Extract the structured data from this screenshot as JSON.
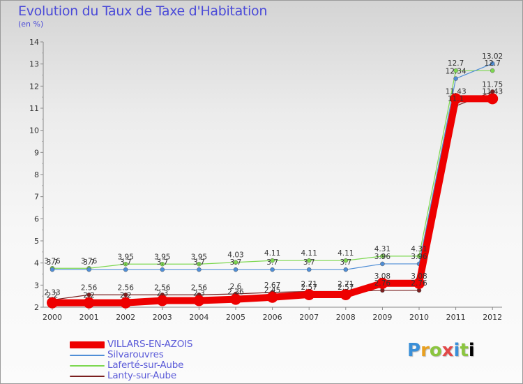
{
  "header": {
    "title": "Evolution du Taux de Taxe d'Habitation",
    "subtitle": "(en %)"
  },
  "chart_data": {
    "type": "line",
    "title": "Evolution du Taux de Taxe d'Habitation",
    "ylabel": "(en %)",
    "xlabel": "",
    "x": [
      "2000",
      "2001",
      "2002",
      "2003",
      "2004",
      "2005",
      "2006",
      "2007",
      "2008",
      "2009",
      "2010",
      "2011",
      "2012"
    ],
    "ylim": [
      2,
      14
    ],
    "yticks": [
      "2",
      "3",
      "4",
      "5",
      "6",
      "7",
      "8",
      "9",
      "10",
      "11",
      "12",
      "13",
      "14"
    ],
    "grid": false,
    "series": [
      {
        "name": "VILLARS-EN-AZOIS",
        "color": "#ee0000",
        "values": [
          2.2,
          2.2,
          2.2,
          2.3,
          2.3,
          2.36,
          2.45,
          2.57,
          2.57,
          3.08,
          3.08,
          11.43,
          11.43
        ],
        "labels": [
          "2.2",
          "2.2",
          "2.2",
          "2.3",
          "2.3",
          "2.36",
          "2.45",
          "2.57",
          "2.57",
          "3.08",
          "3.08",
          "11.43",
          "11.43"
        ]
      },
      {
        "name": "Silvarouvres",
        "color": "#4f8ed6",
        "values": [
          3.7,
          3.7,
          3.7,
          3.7,
          3.7,
          3.7,
          3.7,
          3.7,
          3.7,
          3.96,
          3.96,
          12.34,
          13.02
        ],
        "labels": [
          "3.7",
          "3.7",
          "3.7",
          "3.7",
          "3.7",
          "3.7",
          "3.7",
          "3.7",
          "3.7",
          "3.96",
          "3.96",
          "12.34",
          "13.02"
        ]
      },
      {
        "name": "Laferté-sur-Aube",
        "color": "#7dd850",
        "values": [
          3.76,
          3.76,
          3.95,
          3.95,
          3.95,
          4.03,
          4.11,
          4.11,
          4.11,
          4.31,
          4.31,
          12.7,
          12.7
        ],
        "labels": [
          "3.76",
          "3.76",
          "3.95",
          "3.95",
          "3.95",
          "4.03",
          "4.11",
          "4.11",
          "4.11",
          "4.31",
          "4.31",
          "12.7",
          "12.7"
        ]
      },
      {
        "name": "Lanty-sur-Aube",
        "color": "#7a1f1f",
        "values": [
          2.33,
          2.56,
          2.56,
          2.56,
          2.56,
          2.6,
          2.67,
          2.71,
          2.71,
          2.76,
          2.76,
          11.1,
          11.75
        ],
        "labels": [
          "2.33",
          "2.56",
          "2.56",
          "2.56",
          "2.56",
          "2.6",
          "2.67",
          "2.71",
          "2.71",
          "2.76",
          "2.76",
          "11.1",
          "11.75"
        ]
      }
    ]
  },
  "legend": {
    "items": [
      {
        "label": "VILLARS-EN-AZOIS",
        "color": "#ee0000"
      },
      {
        "label": "Silvarouvres",
        "color": "#4f8ed6"
      },
      {
        "label": "Laferté-sur-Aube",
        "color": "#7dd850"
      },
      {
        "label": "Lanty-sur-Aube",
        "color": "#7a1f1f"
      }
    ]
  },
  "logo": {
    "letters": [
      "P",
      "r",
      "o",
      "x",
      "i",
      "t",
      "i"
    ]
  }
}
